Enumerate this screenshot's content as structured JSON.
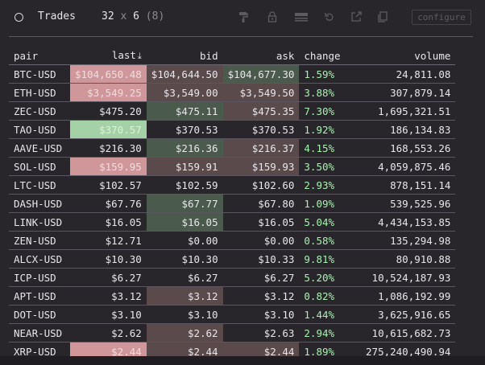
{
  "header": {
    "title": "Trades",
    "rows": "32",
    "times": "x",
    "cols": "6",
    "hidden": "(8)",
    "configure_label": "configure",
    "tools": [
      "paint-roller-icon",
      "lock-icon",
      "menu-lines-icon",
      "refresh-icon",
      "popout-icon",
      "copy-icon"
    ]
  },
  "table": {
    "columns": [
      "pair",
      "last",
      "bid",
      "ask",
      "change",
      "volume"
    ],
    "sort_indicator": "⤓",
    "rows": [
      {
        "pair": "BTC-USD",
        "last": "$104,650.48",
        "bid": "$104,644.50",
        "ask": "$104,677.30",
        "change": "1.59%",
        "volume": "24,811.08",
        "hl": [
          "last-down",
          "down",
          "up"
        ]
      },
      {
        "pair": "ETH-USD",
        "last": "$3,549.25",
        "bid": "$3,549.00",
        "ask": "$3,549.50",
        "change": "3.88%",
        "volume": "307,879.14",
        "hl": [
          "last-down",
          "down",
          "down"
        ]
      },
      {
        "pair": "ZEC-USD",
        "last": "$475.20",
        "bid": "$475.11",
        "ask": "$475.35",
        "change": "7.30%",
        "volume": "1,695,321.51",
        "hl": [
          "",
          "up",
          "down"
        ]
      },
      {
        "pair": "TAO-USD",
        "last": "$370.57",
        "bid": "$370.53",
        "ask": "$370.53",
        "change": "1.92%",
        "volume": "186,134.83",
        "hl": [
          "last-up",
          "",
          ""
        ]
      },
      {
        "pair": "AAVE-USD",
        "last": "$216.30",
        "bid": "$216.36",
        "ask": "$216.37",
        "change": "4.15%",
        "volume": "168,553.26",
        "hl": [
          "",
          "up",
          "down"
        ]
      },
      {
        "pair": "SOL-USD",
        "last": "$159.95",
        "bid": "$159.91",
        "ask": "$159.93",
        "change": "3.50%",
        "volume": "4,059,875.46",
        "hl": [
          "last-down",
          "down",
          "down"
        ]
      },
      {
        "pair": "LTC-USD",
        "last": "$102.57",
        "bid": "$102.59",
        "ask": "$102.60",
        "change": "2.93%",
        "volume": "878,151.14",
        "hl": [
          "",
          "",
          ""
        ]
      },
      {
        "pair": "DASH-USD",
        "last": "$67.76",
        "bid": "$67.77",
        "ask": "$67.80",
        "change": "1.09%",
        "volume": "539,525.96",
        "hl": [
          "",
          "up",
          ""
        ]
      },
      {
        "pair": "LINK-USD",
        "last": "$16.05",
        "bid": "$16.05",
        "ask": "$16.05",
        "change": "5.04%",
        "volume": "4,434,153.85",
        "hl": [
          "",
          "up",
          ""
        ]
      },
      {
        "pair": "ZEN-USD",
        "last": "$12.71",
        "bid": "$0.00",
        "ask": "$0.00",
        "change": "0.58%",
        "volume": "135,294.98",
        "hl": [
          "",
          "",
          ""
        ]
      },
      {
        "pair": "ALCX-USD",
        "last": "$10.30",
        "bid": "$10.30",
        "ask": "$10.33",
        "change": "9.81%",
        "volume": "80,910.88",
        "hl": [
          "",
          "",
          ""
        ]
      },
      {
        "pair": "ICP-USD",
        "last": "$6.27",
        "bid": "$6.27",
        "ask": "$6.27",
        "change": "5.20%",
        "volume": "10,524,187.93",
        "hl": [
          "",
          "",
          ""
        ]
      },
      {
        "pair": "APT-USD",
        "last": "$3.12",
        "bid": "$3.12",
        "ask": "$3.12",
        "change": "0.82%",
        "volume": "1,086,192.99",
        "hl": [
          "",
          "down",
          ""
        ]
      },
      {
        "pair": "DOT-USD",
        "last": "$3.10",
        "bid": "$3.10",
        "ask": "$3.10",
        "change": "1.44%",
        "volume": "3,625,916.65",
        "hl": [
          "",
          "",
          ""
        ]
      },
      {
        "pair": "NEAR-USD",
        "last": "$2.62",
        "bid": "$2.62",
        "ask": "$2.63",
        "change": "2.94%",
        "volume": "10,615,682.73",
        "hl": [
          "",
          "down",
          ""
        ]
      },
      {
        "pair": "XRP-USD",
        "last": "$2.44",
        "bid": "$2.44",
        "ask": "$2.44",
        "change": "1.89%",
        "volume": "275,240,490.94",
        "hl": [
          "last-down",
          "down",
          "down"
        ]
      }
    ]
  }
}
